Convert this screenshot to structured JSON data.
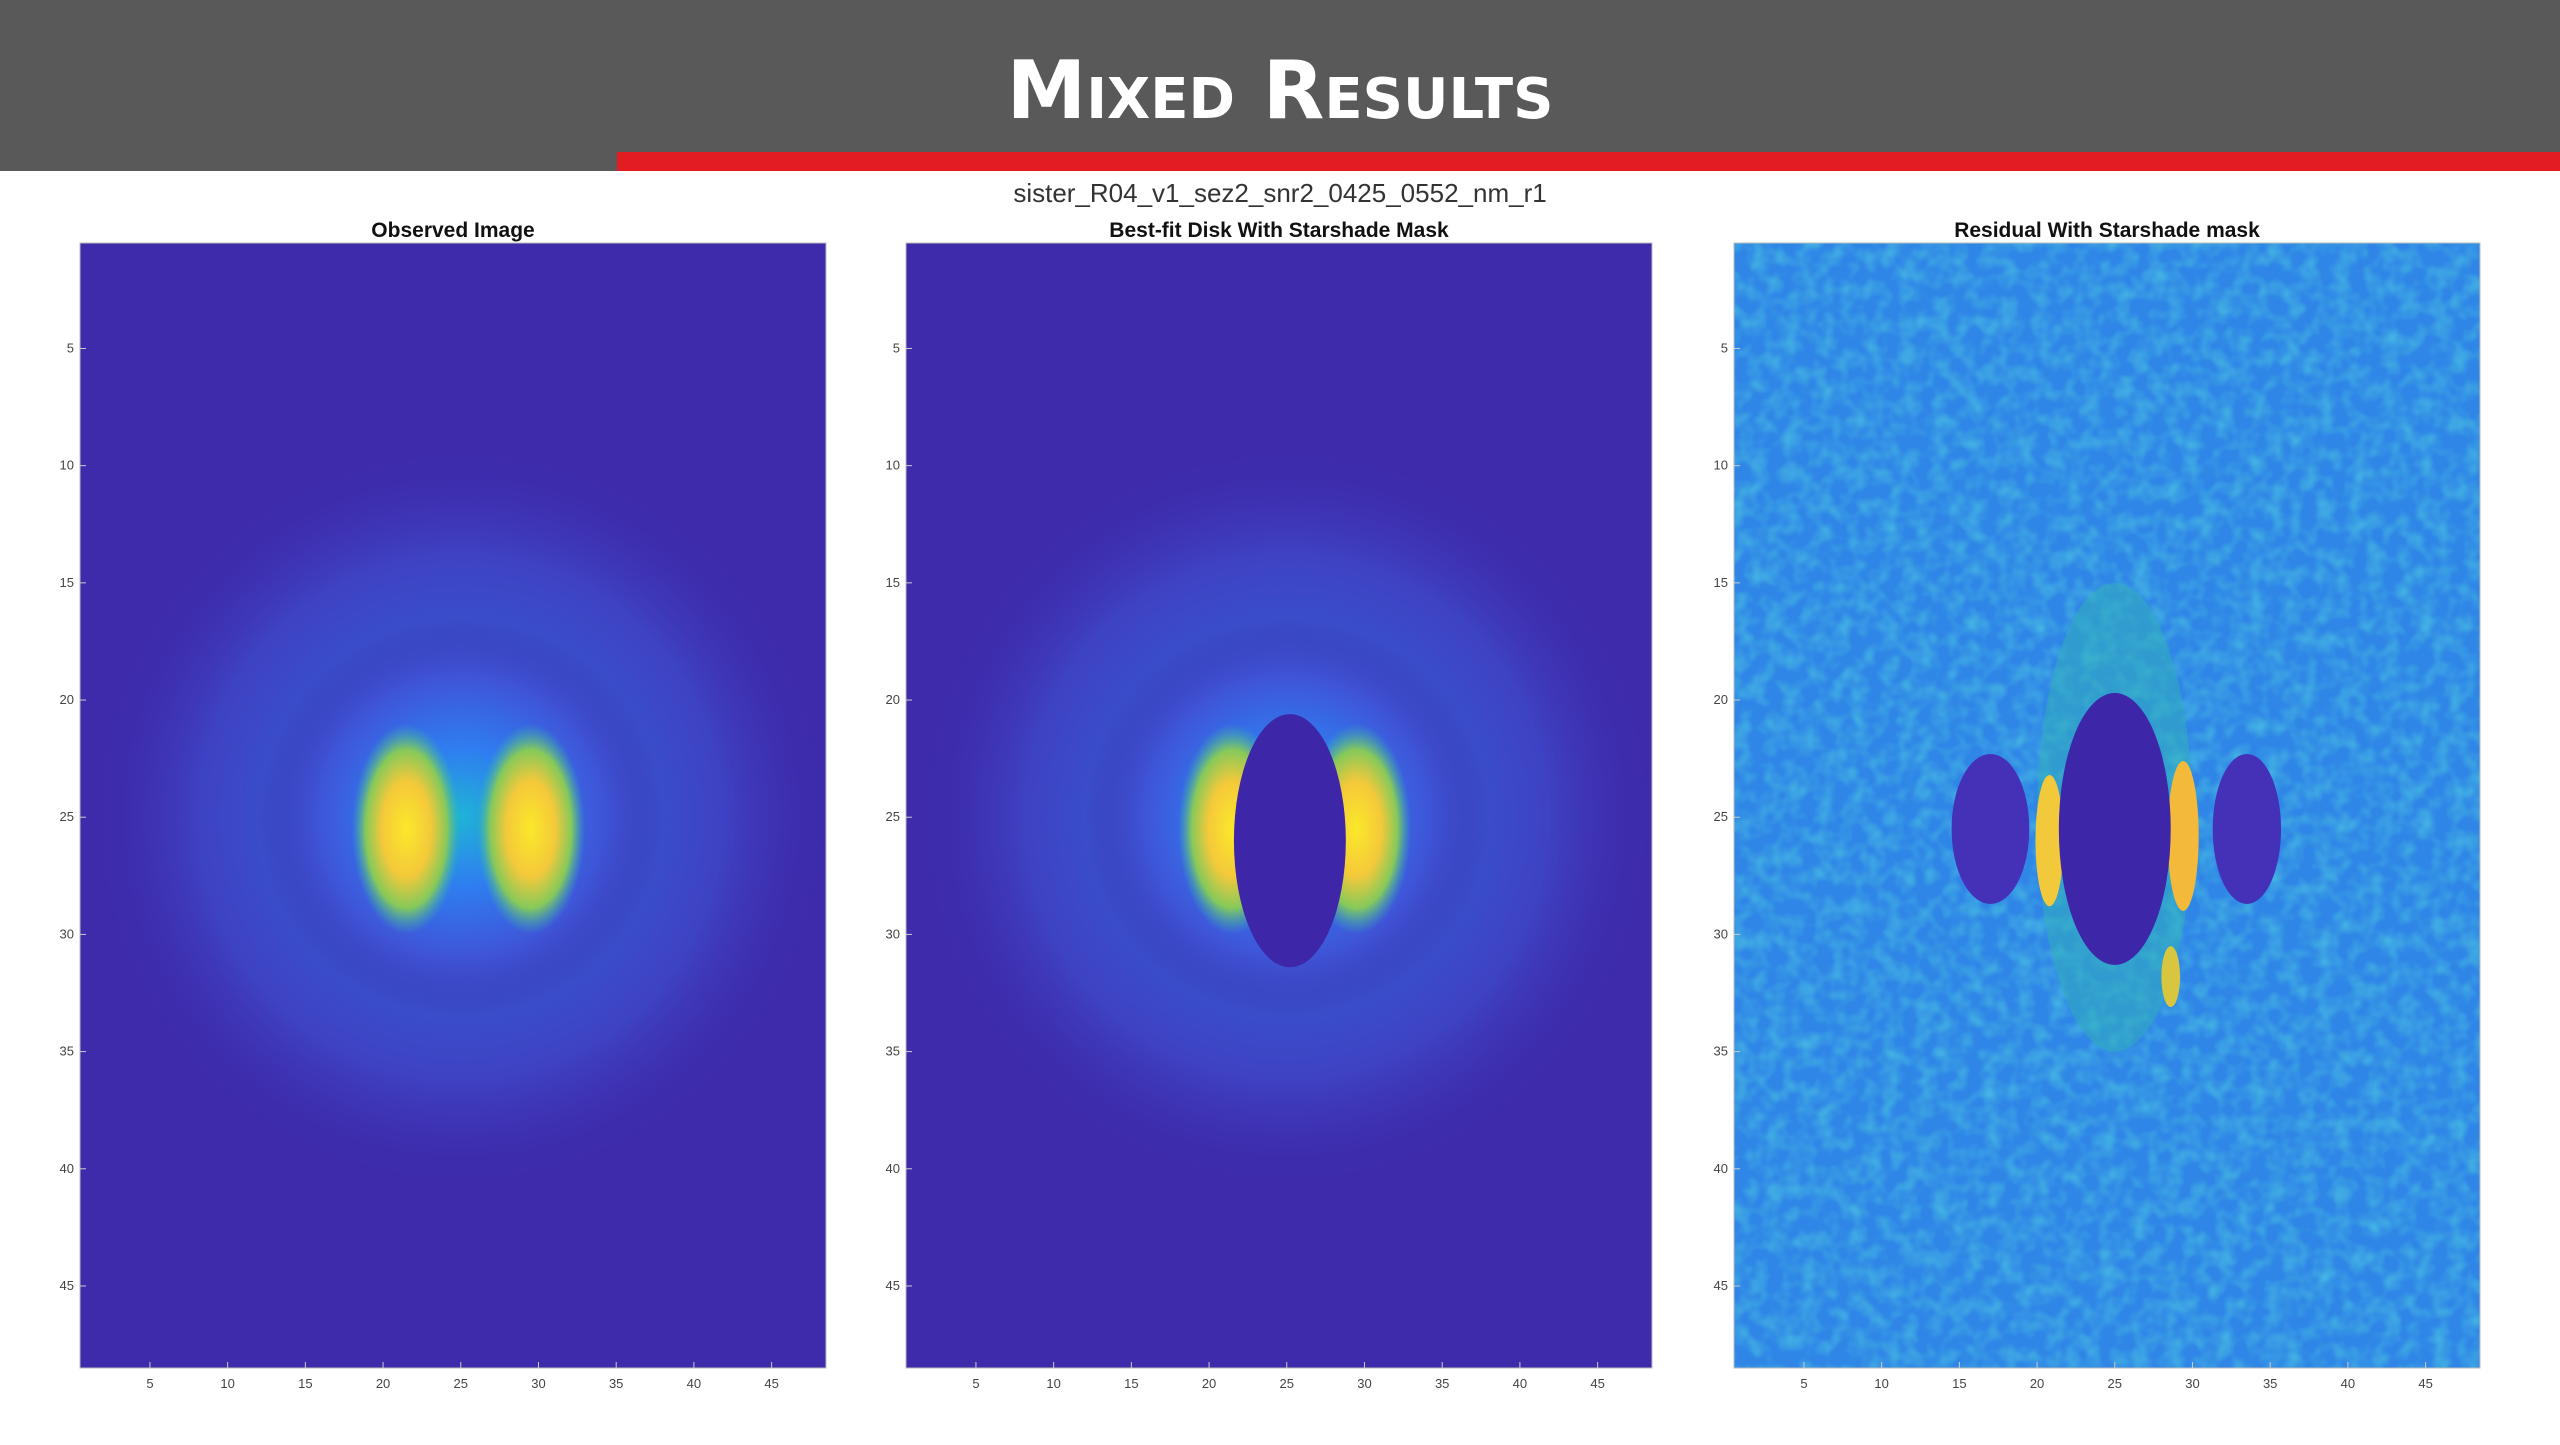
{
  "header": {
    "title": "Mixed Results"
  },
  "subtitle": "sister_R04_v1_sez2_snr2_0425_0552_nm_r1",
  "panels": [
    {
      "title": "Observed Image",
      "xlim": [
        0.5,
        48.5
      ],
      "ylim": [
        0.5,
        48.5
      ],
      "xticks": [
        5,
        10,
        15,
        20,
        25,
        30,
        35,
        40,
        45
      ],
      "yticks": [
        5,
        10,
        15,
        20,
        25,
        30,
        35,
        40,
        45
      ]
    },
    {
      "title": "Best-fit Disk With Starshade Mask",
      "xlim": [
        0.5,
        48.5
      ],
      "ylim": [
        0.5,
        48.5
      ],
      "xticks": [
        5,
        10,
        15,
        20,
        25,
        30,
        35,
        40,
        45
      ],
      "yticks": [
        5,
        10,
        15,
        20,
        25,
        30,
        35,
        40,
        45
      ]
    },
    {
      "title": "Residual With Starshade mask",
      "xlim": [
        0.5,
        48.5
      ],
      "ylim": [
        0.5,
        48.5
      ],
      "xticks": [
        5,
        10,
        15,
        20,
        25,
        30,
        35,
        40,
        45
      ],
      "yticks": [
        5,
        10,
        15,
        20,
        25,
        30,
        35,
        40,
        45
      ]
    }
  ]
}
